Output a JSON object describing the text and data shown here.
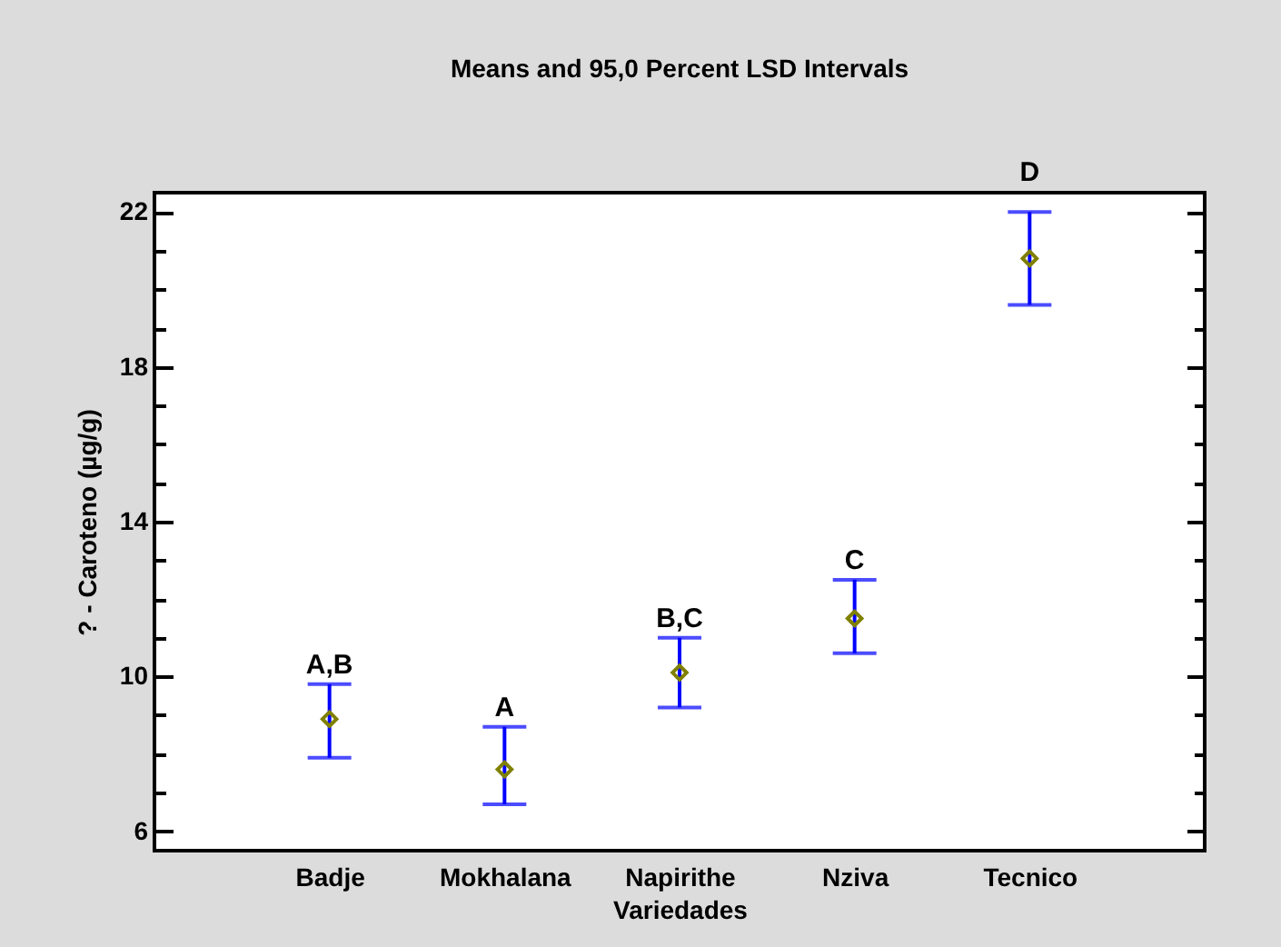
{
  "chart_data": {
    "type": "scatter",
    "title": "Means and 95,0 Percent LSD Intervals",
    "xlabel": "Variedades",
    "ylabel": "? - Caroteno (µg/g)",
    "categories": [
      "Badje",
      "Mokhalana",
      "Napirithe",
      "Nziva",
      "Tecnico"
    ],
    "series": [
      {
        "color": "#808000",
        "values": [
          8.9,
          7.6,
          10.1,
          11.5,
          20.8
        ],
        "errors": [
          [
            7.9,
            9.8
          ],
          [
            6.7,
            8.7
          ],
          [
            9.2,
            11.0
          ],
          [
            10.6,
            12.5
          ],
          [
            19.6,
            22.0
          ]
        ]
      }
    ],
    "annotations": [
      {
        "text": "A,B",
        "x": "Badje",
        "y": 9.8
      },
      {
        "text": "A",
        "x": "Mokhalana",
        "y": 8.7
      },
      {
        "text": "B,C",
        "x": "Napirithe",
        "y": 11.0
      },
      {
        "text": "C",
        "x": "Nziva",
        "y": 12.5
      },
      {
        "text": "D",
        "x": "Tecnico",
        "y": 22.0
      }
    ],
    "ylim": [
      5.5,
      22.5
    ],
    "yticks": [
      6,
      {
        "value": 7,
        "label": null
      },
      {
        "value": 8,
        "label": null
      },
      {
        "value": 9,
        "label": null
      },
      10,
      {
        "value": 11,
        "label": null
      },
      {
        "value": 12,
        "label": null
      },
      {
        "value": 13,
        "label": null
      },
      14,
      {
        "value": 15,
        "label": null
      },
      {
        "value": 16,
        "label": null
      },
      {
        "value": 17,
        "label": null
      },
      18,
      {
        "value": 19,
        "label": null
      },
      {
        "value": 20,
        "label": null
      },
      {
        "value": 21,
        "label": null
      },
      22
    ],
    "marker": "diamond",
    "grid": false
  }
}
